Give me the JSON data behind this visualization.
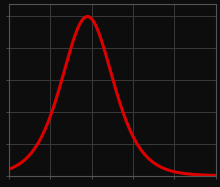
{
  "background_color": "#0d0d0d",
  "grid_color": "#3a3a3a",
  "curve_color": "#dd0000",
  "curve_linewidth": 2.2,
  "x_min": 0,
  "x_max": 10,
  "y_min": 0,
  "y_max": 1.08,
  "figsize": [
    2.2,
    1.87
  ],
  "dpi": 100,
  "grid_linewidth": 0.7,
  "spine_color": "#555555",
  "spine_linewidth": 0.8
}
